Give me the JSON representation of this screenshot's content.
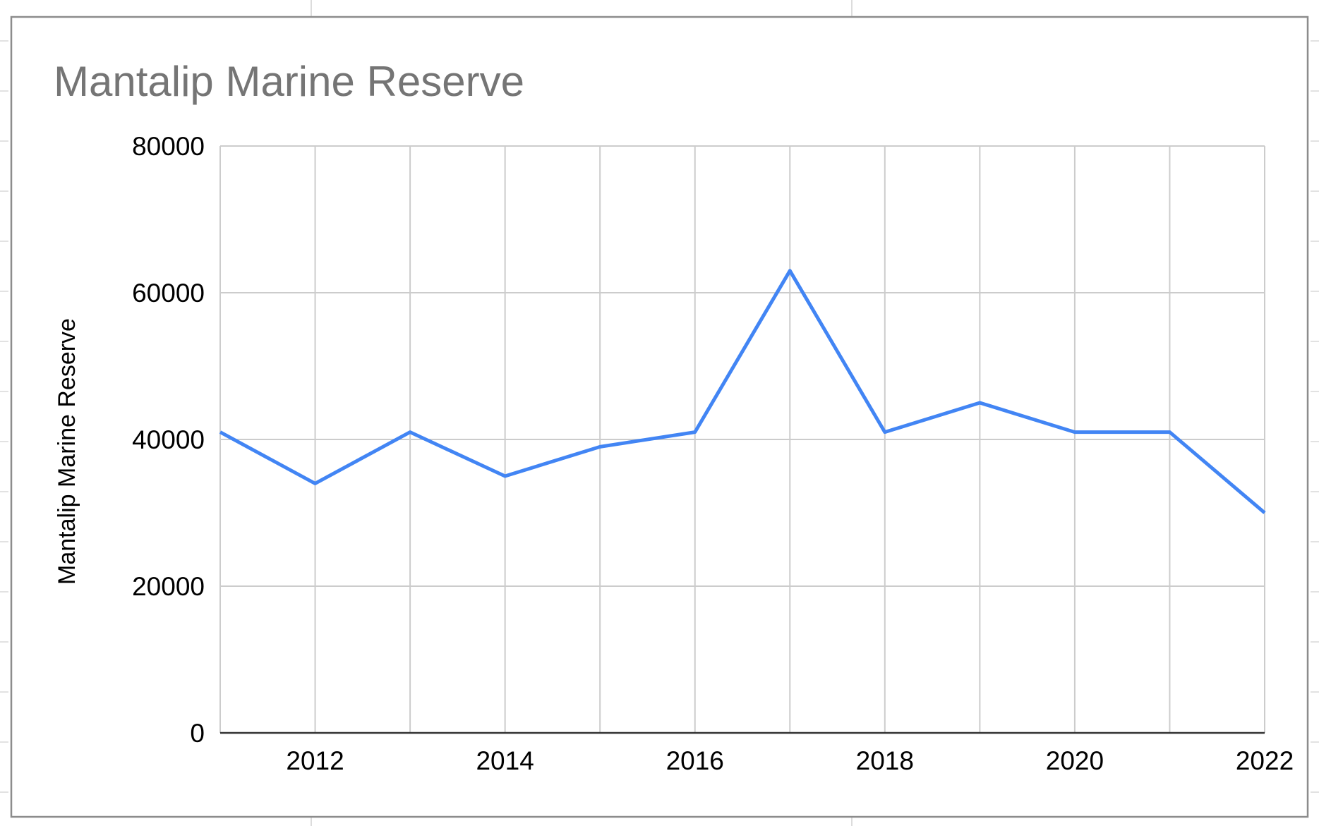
{
  "chart_data": {
    "type": "line",
    "title": "Mantalip Marine Reserve",
    "xlabel": "",
    "ylabel": "Mantalip Marine Reserve",
    "x": [
      2011,
      2012,
      2013,
      2014,
      2015,
      2016,
      2017,
      2018,
      2019,
      2020,
      2021,
      2022
    ],
    "series": [
      {
        "name": "",
        "color": "#4285f4",
        "values": [
          41000,
          34000,
          41000,
          35000,
          39000,
          41000,
          63000,
          41000,
          45000,
          41000,
          41000,
          30000
        ]
      }
    ],
    "xlim": [
      2011,
      2022
    ],
    "ylim": [
      0,
      80000
    ],
    "x_ticks": [
      "2012",
      "2014",
      "2016",
      "2018",
      "2020",
      "2022"
    ],
    "y_ticks": [
      "0",
      "20000",
      "40000",
      "60000",
      "80000"
    ],
    "grid": true,
    "legend": "none"
  }
}
